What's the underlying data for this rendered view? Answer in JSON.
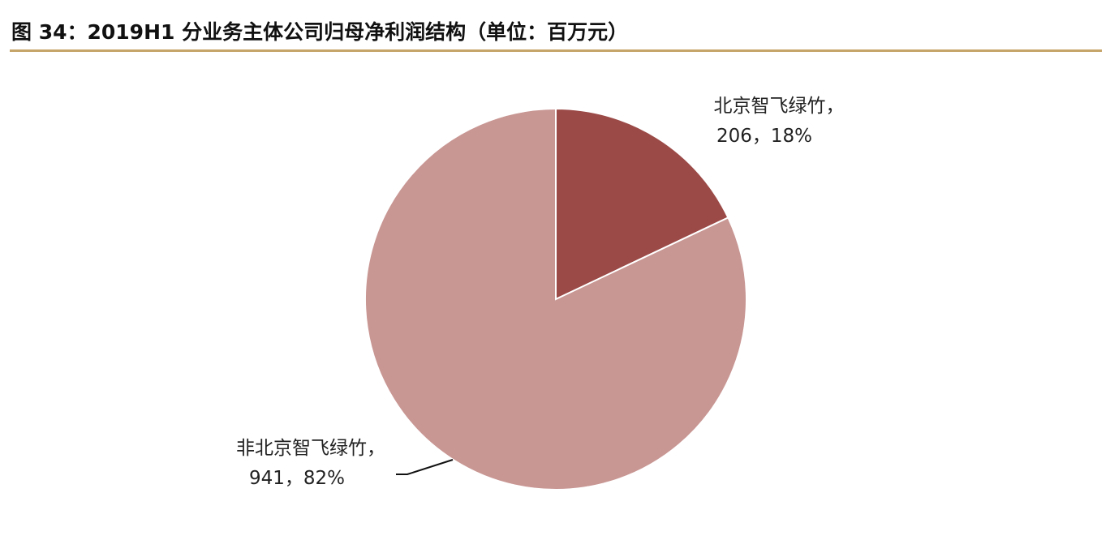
{
  "title": "图 34：2019H1 分业务主体公司归母净利润结构（单位：百万元）",
  "colors": {
    "rule": "#c6a56a"
  },
  "chart_data": {
    "type": "pie",
    "start": "top",
    "direction": "clockwise",
    "slices": [
      {
        "name": "北京智飞绿竹",
        "value": 206,
        "percent": "18%",
        "label_line1": "北京智飞绿竹，",
        "label_line2": "206，18%",
        "color": "#9b4a47"
      },
      {
        "name": "非北京智飞绿竹",
        "value": 941,
        "percent": "82%",
        "label_line1": "非北京智飞绿竹，",
        "label_line2": "941，82%",
        "color": "#c89693"
      }
    ]
  }
}
